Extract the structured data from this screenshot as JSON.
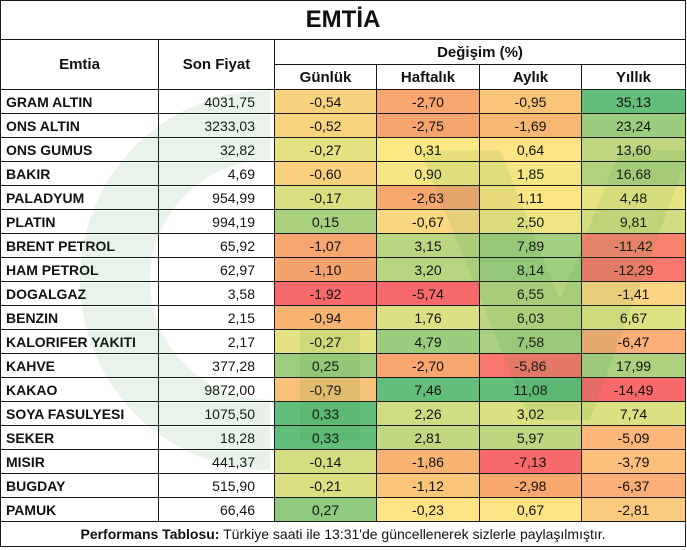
{
  "title": "EMTİA",
  "headers": {
    "name": "Emtia",
    "price": "Son Fiyat",
    "change_group": "Değişim (%)",
    "periods": [
      "Günlük",
      "Haftalık",
      "Aylık",
      "Yıllık"
    ]
  },
  "rows": [
    {
      "name": "GRAM ALTIN",
      "price": "4031,75",
      "values": [
        "-0,54",
        "-2,70",
        "-0,95",
        "35,13"
      ],
      "colors": [
        "#f8d37f",
        "#f6a66e",
        "#f8c579",
        "#63be7b"
      ]
    },
    {
      "name": "ONS ALTIN",
      "price": "3233,03",
      "values": [
        "-0,52",
        "-2,75",
        "-1,69",
        "23,24"
      ],
      "colors": [
        "#f8d47f",
        "#f6a46d",
        "#f7b773",
        "#9ccd7e"
      ]
    },
    {
      "name": "ONS GUMUS",
      "price": "32,82",
      "values": [
        "-0,27",
        "0,31",
        "0,64",
        "13,60"
      ],
      "colors": [
        "#e4e283",
        "#fbe983",
        "#fde383",
        "#bfd780"
      ]
    },
    {
      "name": "BAKIR",
      "price": "4,69",
      "values": [
        "-0,60",
        "0,90",
        "1,85",
        "16,68"
      ],
      "colors": [
        "#f9d17e",
        "#f4e783",
        "#f4e783",
        "#b1d37f"
      ]
    },
    {
      "name": "PALADYUM",
      "price": "954,99",
      "values": [
        "-0,17",
        "-2,63",
        "1,11",
        "4,48"
      ],
      "colors": [
        "#dadf82",
        "#f6a76e",
        "#fce583",
        "#e9e583"
      ]
    },
    {
      "name": "PLATIN",
      "price": "994,19",
      "values": [
        "0,15",
        "-0,67",
        "2,50",
        "9,81"
      ],
      "colors": [
        "#a8d07f",
        "#f9d880",
        "#eee683",
        "#d2dc81"
      ]
    },
    {
      "name": "BRENT PETROL",
      "price": "65,92",
      "values": [
        "-1,07",
        "3,15",
        "7,89",
        "-11,42"
      ],
      "colors": [
        "#f6a66e",
        "#bad680",
        "#a4cf7f",
        "#f9836c"
      ]
    },
    {
      "name": "HAM PETROL",
      "price": "62,97",
      "values": [
        "-1,10",
        "3,20",
        "8,14",
        "-12,29"
      ],
      "colors": [
        "#f5a36d",
        "#b8d680",
        "#a0ce7f",
        "#f8796b"
      ]
    },
    {
      "name": "DOGALGAZ",
      "price": "3,58",
      "values": [
        "-1,92",
        "-5,74",
        "6,55",
        "-1,41"
      ],
      "colors": [
        "#f8696b",
        "#f8696b",
        "#b5d580",
        "#fdd582"
      ]
    },
    {
      "name": "BENZIN",
      "price": "2,15",
      "values": [
        "-0,94",
        "1,76",
        "6,03",
        "6,67"
      ],
      "colors": [
        "#f6b372",
        "#dce083",
        "#bcd780",
        "#dfe283"
      ]
    },
    {
      "name": "KALORIFER YAKITI",
      "price": "2,17",
      "values": [
        "-0,27",
        "4,79",
        "7,58",
        "-6,47"
      ],
      "colors": [
        "#e4e283",
        "#9ccd7e",
        "#a8d07f",
        "#fbae77"
      ]
    },
    {
      "name": "KAHVE",
      "price": "377,28",
      "values": [
        "0,25",
        "-2,70",
        "-5,86",
        "17,99"
      ],
      "colors": [
        "#9fcd7e",
        "#f6a66e",
        "#f8766d",
        "#acd17f"
      ]
    },
    {
      "name": "KAKAO",
      "price": "9872,00",
      "values": [
        "-0,79",
        "7,46",
        "11,08",
        "-14,49"
      ],
      "colors": [
        "#f7c277",
        "#63be7b",
        "#63be7b",
        "#f8696b"
      ]
    },
    {
      "name": "SOYA FASULYESI",
      "price": "1075,50",
      "values": [
        "0,33",
        "2,26",
        "3,02",
        "7,74"
      ],
      "colors": [
        "#63be7b",
        "#d0dc81",
        "#dce083",
        "#dbe082"
      ]
    },
    {
      "name": "SEKER",
      "price": "18,28",
      "values": [
        "0,33",
        "2,81",
        "5,97",
        "-5,09"
      ],
      "colors": [
        "#63be7b",
        "#c2d880",
        "#bcd780",
        "#fbb679"
      ]
    },
    {
      "name": "MISIR",
      "price": "441,37",
      "values": [
        "-0,14",
        "-1,86",
        "-7,13",
        "-3,79"
      ],
      "colors": [
        "#d4dd81",
        "#f7b372",
        "#f8696b",
        "#fcc07c"
      ]
    },
    {
      "name": "BUGDAY",
      "price": "515,90",
      "values": [
        "-0,21",
        "-1,12",
        "-2,98",
        "-6,37"
      ],
      "colors": [
        "#dbdf82",
        "#f8c579",
        "#f9a870",
        "#fbae77"
      ]
    },
    {
      "name": "PAMUK",
      "price": "66,46",
      "values": [
        "0,27",
        "-0,23",
        "0,67",
        "-2,81"
      ],
      "colors": [
        "#8fc97d",
        "#fde383",
        "#fde383",
        "#fcca7f"
      ]
    }
  ],
  "footer": {
    "bold": "Performans Tablosu:",
    "text": " Türkiye saati ile 13:31'de güncellenerek sizlerle paylaşılmıştır."
  }
}
